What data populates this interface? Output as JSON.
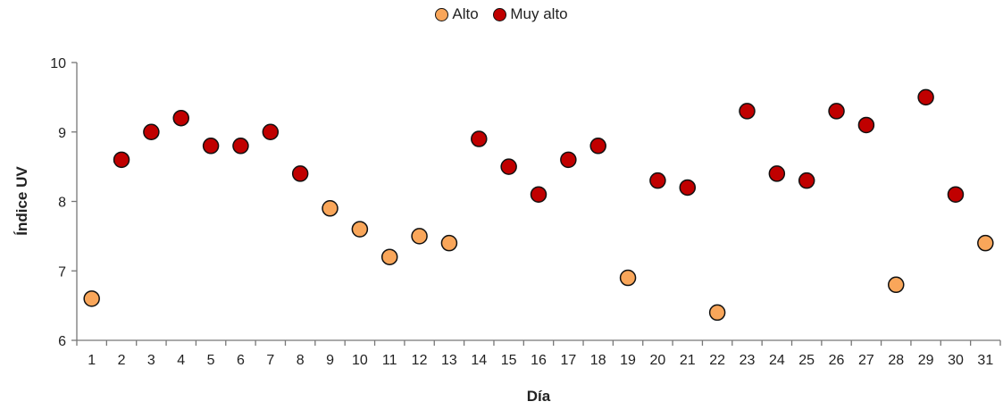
{
  "chart_data": {
    "type": "scatter",
    "xlabel": "Día",
    "ylabel": "Índice UV",
    "ylim": [
      6,
      10
    ],
    "yticks": [
      6,
      7,
      8,
      9,
      10
    ],
    "categories": [
      "1",
      "2",
      "3",
      "4",
      "5",
      "6",
      "7",
      "8",
      "9",
      "10",
      "11",
      "12",
      "13",
      "14",
      "15",
      "16",
      "17",
      "18",
      "19",
      "20",
      "21",
      "22",
      "23",
      "24",
      "25",
      "26",
      "27",
      "28",
      "29",
      "30",
      "31"
    ],
    "legend_position": "top-center",
    "grid": false,
    "series": [
      {
        "name": "Alto",
        "color": "#F9A65A",
        "points": [
          {
            "x": 1,
            "y": 6.6
          },
          {
            "x": 9,
            "y": 7.9
          },
          {
            "x": 10,
            "y": 7.6
          },
          {
            "x": 11,
            "y": 7.2
          },
          {
            "x": 12,
            "y": 7.5
          },
          {
            "x": 13,
            "y": 7.4
          },
          {
            "x": 19,
            "y": 6.9
          },
          {
            "x": 22,
            "y": 6.4
          },
          {
            "x": 28,
            "y": 6.8
          },
          {
            "x": 31,
            "y": 7.4
          }
        ]
      },
      {
        "name": "Muy alto",
        "color": "#C00000",
        "points": [
          {
            "x": 2,
            "y": 8.6
          },
          {
            "x": 3,
            "y": 9.0
          },
          {
            "x": 4,
            "y": 9.2
          },
          {
            "x": 5,
            "y": 8.8
          },
          {
            "x": 6,
            "y": 8.8
          },
          {
            "x": 7,
            "y": 9.0
          },
          {
            "x": 8,
            "y": 8.4
          },
          {
            "x": 14,
            "y": 8.9
          },
          {
            "x": 15,
            "y": 8.5
          },
          {
            "x": 16,
            "y": 8.1
          },
          {
            "x": 17,
            "y": 8.6
          },
          {
            "x": 18,
            "y": 8.8
          },
          {
            "x": 20,
            "y": 8.3
          },
          {
            "x": 21,
            "y": 8.2
          },
          {
            "x": 23,
            "y": 9.3
          },
          {
            "x": 24,
            "y": 8.4
          },
          {
            "x": 25,
            "y": 8.3
          },
          {
            "x": 26,
            "y": 9.3
          },
          {
            "x": 27,
            "y": 9.1
          },
          {
            "x": 29,
            "y": 9.5
          },
          {
            "x": 30,
            "y": 8.1
          }
        ]
      }
    ]
  }
}
